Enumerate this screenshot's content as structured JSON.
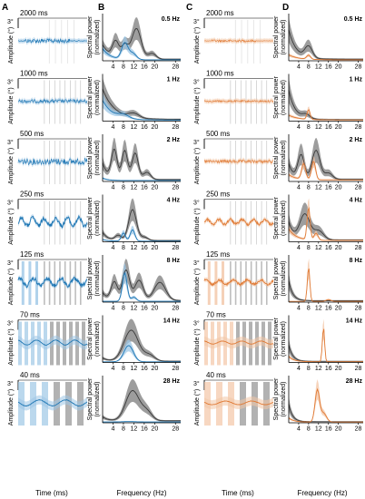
{
  "panel_letters": [
    "A",
    "B",
    "C",
    "D"
  ],
  "colors": {
    "blue": "#1f77b4",
    "blue_light": "#9ec7e6",
    "orange": "#e07a35",
    "orange_light": "#f3c6a6",
    "gray_band": "#8c8c8c",
    "gray_line": "#3a3a3a",
    "stripe_dark": "#7f7f7f",
    "stripe_light": "#c8c8c8"
  },
  "labels": {
    "amplitude": "Amplitude (°)",
    "scale_bar": "3°",
    "spectral_top": "Spectral power",
    "spectral_bottom": "(normalized)",
    "time_axis": "Time (ms)",
    "freq_axis": "Frequency (Hz)"
  },
  "chart_data": {
    "type": "line",
    "freq_ticks": [
      4,
      8,
      12,
      16,
      20,
      28
    ],
    "xlabel_time": "Time (ms)",
    "xlabel_freq": "Frequency (Hz)",
    "ylabel_time": "Amplitude (°)",
    "ylabel_freq": "Spectral power (normalized)",
    "rows": [
      {
        "window": "2000 ms",
        "freq": "0.5 Hz"
      },
      {
        "window": "1000 ms",
        "freq": "1 Hz"
      },
      {
        "window": "500 ms",
        "freq": "2 Hz"
      },
      {
        "window": "250 ms",
        "freq": "4 Hz"
      },
      {
        "window": "125 ms",
        "freq": "8 Hz"
      },
      {
        "window": "70 ms",
        "freq": "14 Hz"
      },
      {
        "window": "40 ms",
        "freq": "28 Hz"
      }
    ]
  }
}
